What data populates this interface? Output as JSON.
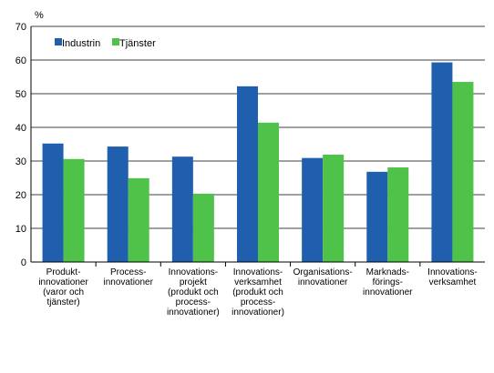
{
  "chart_data": {
    "type": "bar",
    "ylabel": "%",
    "ylim": [
      0,
      70
    ],
    "yticks": [
      0,
      10,
      20,
      30,
      40,
      50,
      60,
      70
    ],
    "grid": true,
    "legend_position": "top-left",
    "categories": [
      [
        "Produkt-",
        "innovationer",
        "(varor och",
        "tjänster)"
      ],
      [
        "Process-",
        "innovationer"
      ],
      [
        "Innovations-",
        "projekt",
        "(produkt och",
        "process-",
        "innovationer)"
      ],
      [
        "Innovations-",
        "verksamhet",
        "(produkt och",
        "process-",
        "innovationer)"
      ],
      [
        "Organisations-",
        "innovationer"
      ],
      [
        "Marknads-",
        "förings-",
        "innovationer"
      ],
      [
        "Innovations-",
        "verksamhet"
      ]
    ],
    "series": [
      {
        "name": "Industrin",
        "color": "#1f5fad",
        "values": [
          35.2,
          34.3,
          31.3,
          52.2,
          30.9,
          26.8,
          59.3
        ]
      },
      {
        "name": "Tjänster",
        "color": "#4fc24a",
        "values": [
          30.6,
          24.9,
          20.3,
          41.4,
          31.9,
          28.1,
          53.5
        ]
      }
    ]
  }
}
